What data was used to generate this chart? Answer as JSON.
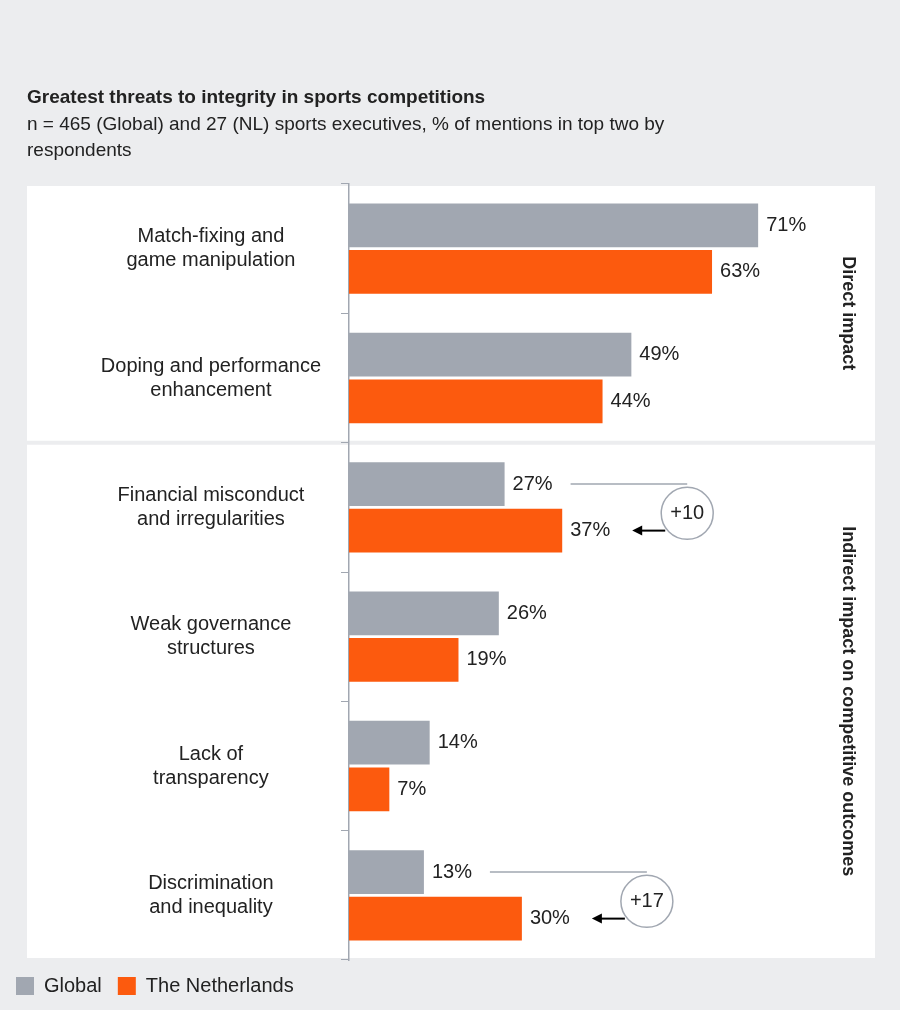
{
  "chart_data": {
    "type": "bar",
    "orientation": "horizontal",
    "title": "Greatest threats to integrity in sports competitions",
    "subtitle": "n = 465 (Global) and 27 (NL) sports executives, % of mentions in top two by respondents",
    "categories": [
      "Match-fixing and\ngame manipulation",
      "Doping and performance\nenhancement",
      "Financial misconduct\nand irregularities",
      "Weak governance\nstructures",
      "Lack of\ntransparency",
      "Discrimination\nand inequality"
    ],
    "series": [
      {
        "name": "Global",
        "color": "#a1a7b1",
        "values": [
          71,
          49,
          27,
          26,
          14,
          13
        ],
        "value_labels": [
          "71%",
          "49%",
          "27%",
          "26%",
          "14%",
          "13%"
        ]
      },
      {
        "name": "The Netherlands",
        "color": "#fc5a0e",
        "values": [
          63,
          44,
          37,
          19,
          7,
          30
        ],
        "value_labels": [
          "63%",
          "44%",
          "37%",
          "19%",
          "7%",
          "30%"
        ]
      }
    ],
    "tick_labels": "y",
    "grid": false,
    "legend": "bottom left",
    "bands": [
      {
        "axis": "y",
        "from": "Match-fixing and\ngame manipulation",
        "to": "Doping and performance\nenhancement",
        "label": "Direct impact",
        "color": "#ffffff"
      },
      {
        "axis": "y",
        "from": "Financial misconduct\nand irregularities",
        "to": "Discrimination\nand inequality",
        "label": "Indirect impact on competitive outcomes",
        "color": "#ffffff"
      }
    ],
    "annotations": [
      "+10",
      "+17"
    ]
  }
}
